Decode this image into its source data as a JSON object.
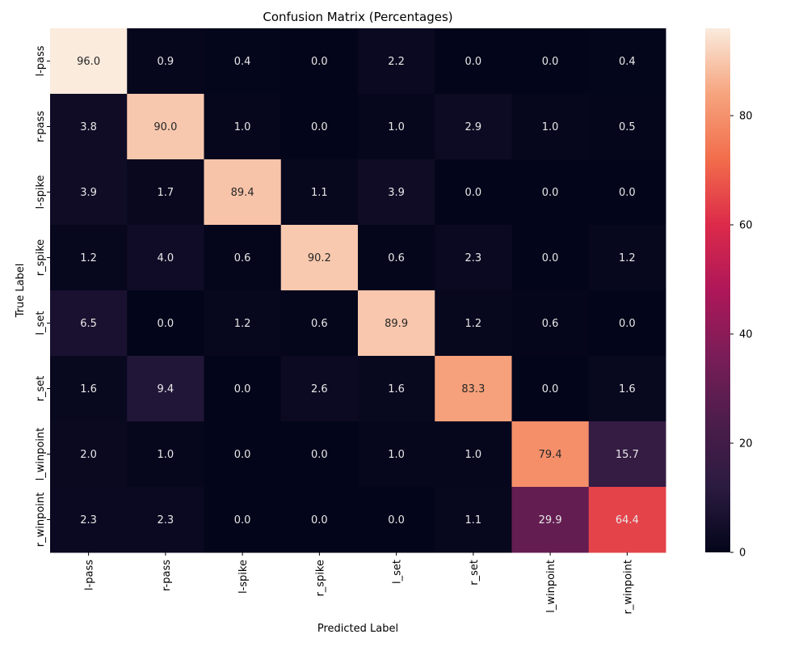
{
  "chart_data": {
    "type": "heatmap",
    "title": "Confusion Matrix (Percentages)",
    "xlabel": "Predicted Label",
    "ylabel": "True Label",
    "x_categories": [
      "l-pass",
      "r-pass",
      "l-spike",
      "r_spike",
      "l_set",
      "r_set",
      "l_winpoint",
      "r_winpoint"
    ],
    "y_categories": [
      "l-pass",
      "r-pass",
      "l-spike",
      "r_spike",
      "l_set",
      "r_set",
      "l_winpoint",
      "r_winpoint"
    ],
    "values": [
      [
        96.0,
        0.9,
        0.4,
        0.0,
        2.2,
        0.0,
        0.0,
        0.4
      ],
      [
        3.8,
        90.0,
        1.0,
        0.0,
        1.0,
        2.9,
        1.0,
        0.5
      ],
      [
        3.9,
        1.7,
        89.4,
        1.1,
        3.9,
        0.0,
        0.0,
        0.0
      ],
      [
        1.2,
        4.0,
        0.6,
        90.2,
        0.6,
        2.3,
        0.0,
        1.2
      ],
      [
        6.5,
        0.0,
        1.2,
        0.6,
        89.9,
        1.2,
        0.6,
        0.0
      ],
      [
        1.6,
        9.4,
        0.0,
        2.6,
        1.6,
        83.3,
        0.0,
        1.6
      ],
      [
        2.0,
        1.0,
        0.0,
        0.0,
        1.0,
        1.0,
        79.4,
        15.7
      ],
      [
        2.3,
        2.3,
        0.0,
        0.0,
        0.0,
        1.1,
        29.9,
        64.4
      ]
    ],
    "value_format": "0.0",
    "colormap": "rocket",
    "colorbar": {
      "range": [
        0,
        96.0
      ],
      "ticks": [
        0,
        20,
        40,
        60,
        80
      ],
      "tick_labels": [
        "0",
        "20",
        "40",
        "60",
        "80"
      ]
    },
    "annotation_colors": {
      "light_text": "#e8e8e8",
      "dark_text": "#262626"
    },
    "grid": false,
    "legend": "colorbar-right"
  }
}
